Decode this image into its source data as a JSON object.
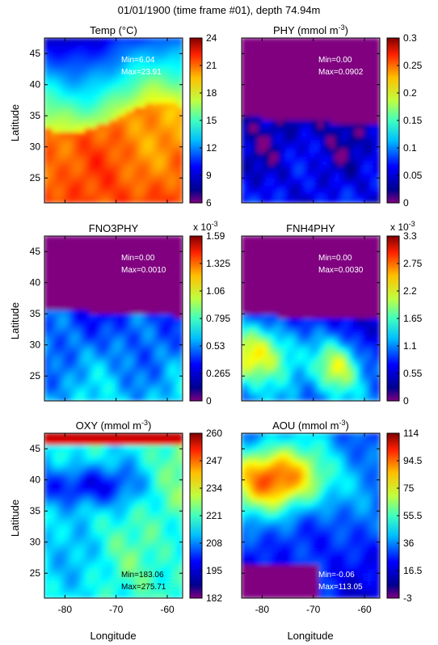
{
  "figure": {
    "title": "01/01/1900 (time frame #01), depth 74.94m",
    "xlabel": "Longitude",
    "ylabel": "Latitude"
  },
  "chart_data": [
    {
      "type": "heatmap",
      "title": "Temp (°C)",
      "title_sup": "",
      "title_suffix": "",
      "stats": [
        "Min=6.04",
        "Max=23.91"
      ],
      "stats_color": "#ffffff",
      "stats_placement": "top-right",
      "colorbar_ticks": [
        "24",
        "21",
        "18",
        "15",
        "12",
        "9",
        "6"
      ],
      "colorbar_exponent": "",
      "clim": [
        6,
        24
      ],
      "xlim": [
        -84,
        -57
      ],
      "ylim": [
        21,
        47.5
      ],
      "xticks": [
        -80,
        -70,
        -60
      ],
      "yticks": [
        25,
        30,
        35,
        40,
        45
      ]
    },
    {
      "type": "heatmap",
      "title": "PHY (mmol m",
      "title_sup": "-3",
      "title_suffix": ")",
      "stats": [
        "Min=0.00",
        "Max=0.0902"
      ],
      "stats_color": "#ffffff",
      "stats_placement": "top-right",
      "colorbar_ticks": [
        "0.3",
        "0.25",
        "0.2",
        "0.15",
        "0.1",
        "0.05",
        "0"
      ],
      "colorbar_exponent": "",
      "clim": [
        0,
        0.3
      ],
      "xlim": [
        -84,
        -57
      ],
      "ylim": [
        21,
        47.5
      ],
      "xticks": [
        -80,
        -70,
        -60
      ],
      "yticks": [
        25,
        30,
        35,
        40,
        45
      ]
    },
    {
      "type": "heatmap",
      "title": "FNO3PHY",
      "title_sup": "",
      "title_suffix": "",
      "stats": [
        "Min=0.00",
        "Max=0.0010"
      ],
      "stats_color": "#ffffff",
      "stats_placement": "top-right",
      "colorbar_ticks": [
        "1.59",
        "1.325",
        "1.06",
        "0.795",
        "0.53",
        "0.265",
        "0"
      ],
      "colorbar_exponent": "-3",
      "clim": [
        0,
        1.59
      ],
      "xlim": [
        -84,
        -57
      ],
      "ylim": [
        21,
        47.5
      ],
      "xticks": [
        -80,
        -70,
        -60
      ],
      "yticks": [
        25,
        30,
        35,
        40,
        45
      ]
    },
    {
      "type": "heatmap",
      "title": "FNH4PHY",
      "title_sup": "",
      "title_suffix": "",
      "stats": [
        "Min=0.00",
        "Max=0.0030"
      ],
      "stats_color": "#ffffff",
      "stats_placement": "top-right",
      "colorbar_ticks": [
        "3.3",
        "2.75",
        "2.2",
        "1.65",
        "1.1",
        "0.55",
        "0"
      ],
      "colorbar_exponent": "-3",
      "clim": [
        0,
        3.3
      ],
      "xlim": [
        -84,
        -57
      ],
      "ylim": [
        21,
        47.5
      ],
      "xticks": [
        -80,
        -70,
        -60
      ],
      "yticks": [
        25,
        30,
        35,
        40,
        45
      ]
    },
    {
      "type": "heatmap",
      "title": "OXY (mmol m",
      "title_sup": "-3",
      "title_suffix": ")",
      "stats": [
        "Min=183.06",
        "Max=275.71"
      ],
      "stats_color": "#000000",
      "stats_placement": "bottom-right",
      "colorbar_ticks": [
        "260",
        "247",
        "234",
        "221",
        "208",
        "195",
        "182"
      ],
      "colorbar_exponent": "",
      "clim": [
        182,
        260
      ],
      "xlim": [
        -84,
        -57
      ],
      "ylim": [
        21,
        47.5
      ],
      "xticks": [
        -80,
        -70,
        -60
      ],
      "yticks": [
        25,
        30,
        35,
        40,
        45
      ]
    },
    {
      "type": "heatmap",
      "title": "AOU (mmol m",
      "title_sup": "-3",
      "title_suffix": ")",
      "stats": [
        "Min=-0.06",
        "Max=113.05"
      ],
      "stats_color": "#ffffff",
      "stats_placement": "bottom-right",
      "colorbar_ticks": [
        "114",
        "94.5",
        "75",
        "55.5",
        "36",
        "16.5",
        "-3"
      ],
      "colorbar_exponent": "",
      "clim": [
        -3,
        114
      ],
      "xlim": [
        -84,
        -57
      ],
      "ylim": [
        21,
        47.5
      ],
      "xticks": [
        -80,
        -70,
        -60
      ],
      "yticks": [
        25,
        30,
        35,
        40,
        45
      ]
    }
  ]
}
